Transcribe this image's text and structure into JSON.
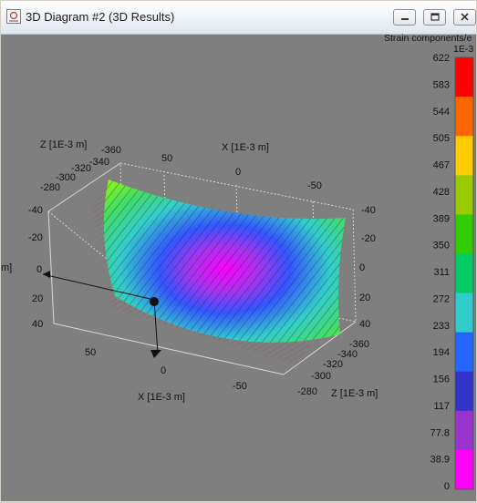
{
  "window": {
    "title": "3D Diagram #2 (3D Results)",
    "controls": [
      "minimize",
      "restore",
      "close"
    ]
  },
  "legend": {
    "title": "Strain components/e",
    "unit": "1E-3",
    "ticks": [
      "622",
      "583",
      "544",
      "505",
      "467",
      "428",
      "389",
      "350",
      "311",
      "272",
      "233",
      "194",
      "156",
      "117",
      "77.8",
      "38.9",
      "0"
    ],
    "colors": [
      "#ff0000",
      "#ff6600",
      "#ffcc00",
      "#99cc00",
      "#33cc00",
      "#00cc66",
      "#33cccc",
      "#2266ff",
      "#3333cc",
      "#9933cc",
      "#ff00ff"
    ]
  },
  "axes": {
    "x_top_label": "X  [1E-3 m]",
    "x_top_ticks": [
      "50",
      "0",
      "-50"
    ],
    "z_left_label": "Z  [1E-3 m]",
    "z_left_ticks": [
      "-360",
      "-340",
      "-320",
      "-300",
      "-280"
    ],
    "y_left_ticks": [
      "-40",
      "-20",
      "0",
      "20",
      "40"
    ],
    "y_right_ticks": [
      "-40",
      "-20",
      "0",
      "20",
      "40"
    ],
    "y_left_cut": "m]",
    "x_bottom_label": "X  [1E-3 m]",
    "x_bottom_ticks": [
      "50",
      "0",
      "-50"
    ],
    "z_right_label": "Z  [1E-3 m]",
    "z_right_ticks": [
      "-360",
      "-340",
      "-320",
      "-300",
      "-280"
    ]
  },
  "colors": {
    "background": "#7f7f7f",
    "surface_low": "#ff00ff",
    "surface_high": "#99ff00"
  }
}
